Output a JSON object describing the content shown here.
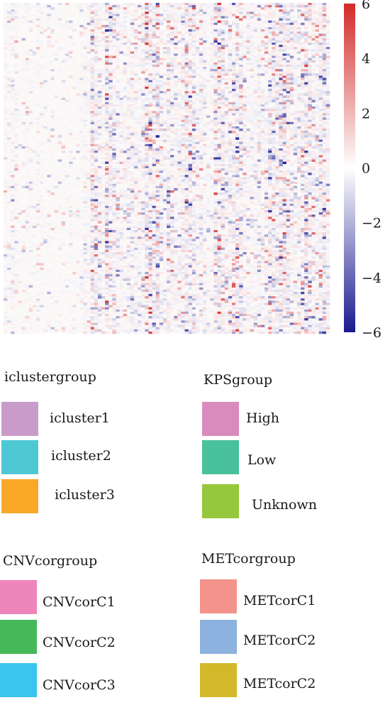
{
  "chart_data": {
    "type": "heatmap",
    "title": "",
    "xlabel": "",
    "ylabel": "",
    "colorscale": {
      "min": -6,
      "max": 6,
      "low_color": "#1a1a8f",
      "mid_color": "#ffffff",
      "high_color": "#d42a2a",
      "ticks": [
        6,
        4,
        2,
        0,
        -2,
        -4,
        -6
      ],
      "tick_labels": [
        "6",
        "4",
        "2",
        "0",
        "−2",
        "−4",
        "−6"
      ]
    },
    "grid": false,
    "row_count": 150,
    "column_count": 90,
    "column_intensity_profile": [
      0.4,
      0.35,
      0.5,
      0.45,
      0.3,
      0.35,
      0.4,
      0.35,
      0.3,
      0.4,
      0.35,
      0.3,
      0.35,
      0.3,
      0.3,
      0.35,
      0.3,
      0.3,
      0.35,
      0.3,
      0.3,
      0.4,
      0.5,
      0.45,
      0.9,
      0.8,
      0.6,
      0.5,
      0.95,
      0.85,
      0.7,
      0.6,
      0.5,
      0.55,
      0.6,
      0.65,
      0.5,
      0.5,
      0.6,
      1.0,
      0.9,
      0.8,
      1.0,
      0.6,
      0.5,
      0.8,
      0.7,
      0.6,
      0.6,
      0.7,
      0.85,
      0.9,
      0.8,
      0.7,
      0.6,
      0.5,
      0.4,
      0.5,
      0.9,
      0.95,
      0.85,
      0.6,
      0.7,
      0.8,
      0.9,
      0.8,
      0.6,
      0.5,
      0.5,
      0.5,
      0.6,
      0.55,
      0.6,
      0.9,
      0.8,
      0.85,
      0.9,
      0.95,
      0.8,
      0.7,
      0.6,
      0.7,
      0.8,
      0.9,
      0.85,
      0.7,
      0.6,
      0.8,
      0.9,
      0.6
    ]
  },
  "legends": [
    {
      "title": "iclustergroup",
      "items": [
        {
          "label": "icluster1",
          "color": "#c89bc9"
        },
        {
          "label": "icluster2",
          "color": "#4fc8d6"
        },
        {
          "label": "icluster3",
          "color": "#f9a828"
        }
      ]
    },
    {
      "title": "KPSgroup",
      "items": [
        {
          "label": "High",
          "color": "#d98bbd"
        },
        {
          "label": "Low",
          "color": "#49c19b"
        },
        {
          "label": "Unknown",
          "color": "#95c83c"
        }
      ]
    },
    {
      "title": "CNVcorgroup",
      "items": [
        {
          "label": "CNVcorC1",
          "color": "#ee86bb"
        },
        {
          "label": "CNVcorC2",
          "color": "#47b859"
        },
        {
          "label": "CNVcorC3",
          "color": "#38c6ef"
        }
      ]
    },
    {
      "title": "METcorgroup",
      "items": [
        {
          "label": "METcorC1",
          "color": "#f3938c"
        },
        {
          "label": "METcorC2",
          "color": "#8eb2df"
        },
        {
          "label": "METcorC2",
          "color": "#d3b82a"
        }
      ]
    }
  ]
}
